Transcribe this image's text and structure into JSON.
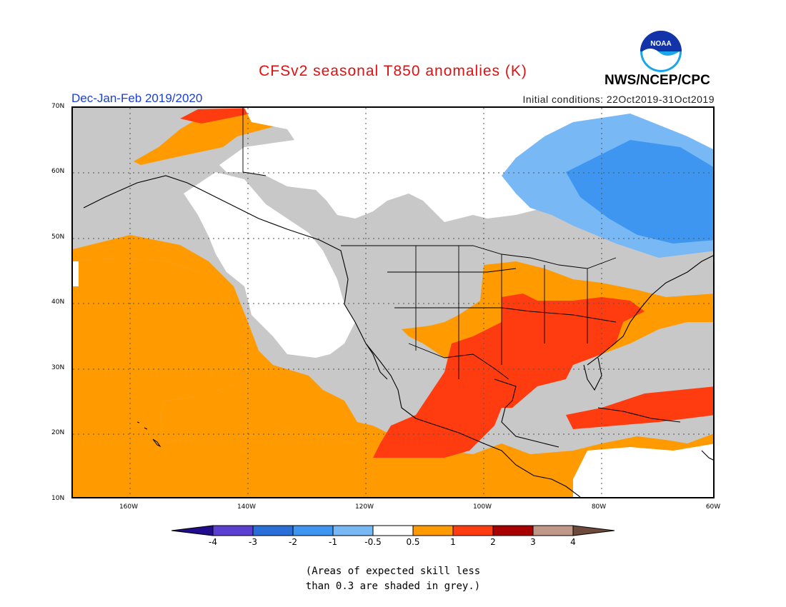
{
  "header": {
    "title": "CFSv2 seasonal T850 anomalies (K)",
    "season": "Dec-Jan-Feb 2019/2020",
    "initial_conditions": "Initial conditions: 22Oct2019-31Oct2019",
    "agency": "NWS/NCEP/CPC",
    "logo_text": "NOAA"
  },
  "map": {
    "lat_labels": [
      "70N",
      "60N",
      "50N",
      "40N",
      "30N",
      "20N",
      "10N"
    ],
    "lon_labels": [
      "160W",
      "140W",
      "120W",
      "100W",
      "80W",
      "60W"
    ],
    "colors": {
      "grey_low_skill": "#c8c8c8",
      "below_4": "#200c8c",
      "m4_m3": "#5a3fd0",
      "m3_m2": "#2a6fd8",
      "m2_m1": "#3f96f0",
      "m1_m05": "#78b8f4",
      "neutral": "#ffffff",
      "p05_p1": "#ff9a00",
      "p1_p2": "#ff3c10",
      "p2_p3": "#a80000",
      "p3_p4": "#c09888",
      "above_4": "#6e4a3c"
    }
  },
  "colorbar": {
    "labels": [
      "-4",
      "-3",
      "-2",
      "-1",
      "-0.5",
      "0.5",
      "1",
      "2",
      "3",
      "4"
    ]
  },
  "footnote": {
    "line1": "(Areas of expected skill less",
    "line2": "than 0.3 are shaded in grey.)"
  }
}
